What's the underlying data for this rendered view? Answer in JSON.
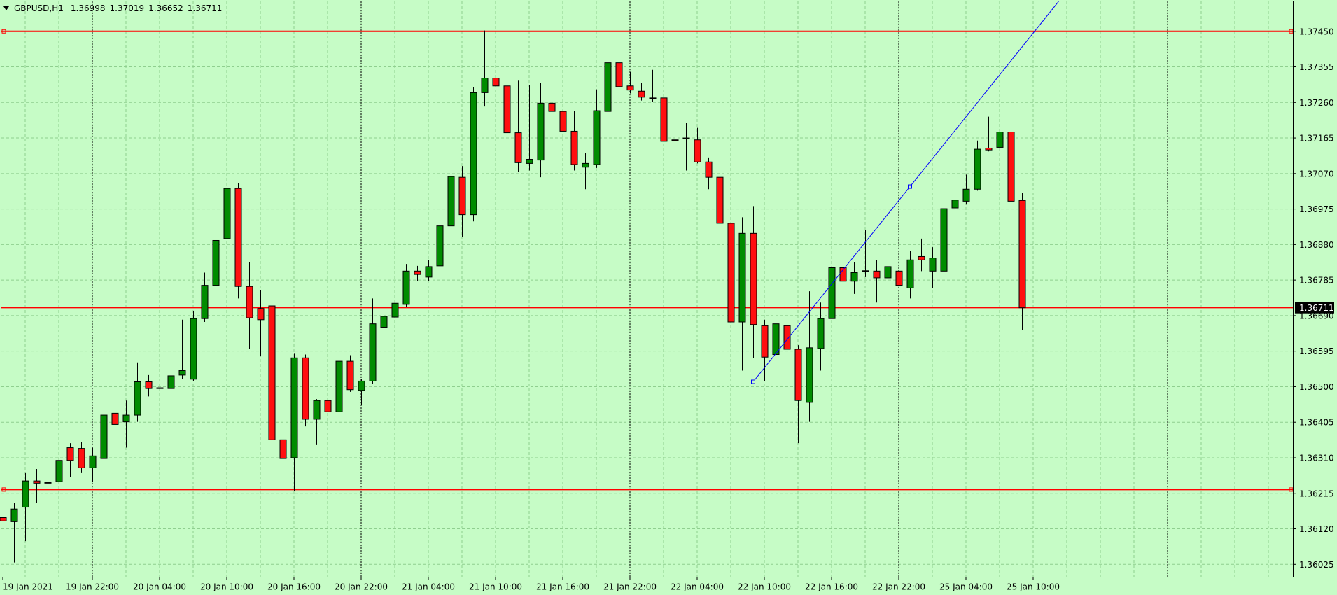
{
  "chart_data": {
    "type": "candlestick",
    "title": "GBPUSD,H1",
    "categories": [
      "19 Jan 2021",
      null,
      null,
      null,
      null,
      null,
      null,
      null,
      "19 Jan 22:00",
      null,
      null,
      null,
      null,
      null,
      "20 Jan 04:00",
      null,
      null,
      null,
      null,
      null,
      "20 Jan 10:00",
      null,
      null,
      null,
      null,
      null,
      "20 Jan 16:00",
      null,
      null,
      null,
      null,
      null,
      "20 Jan 22:00",
      null,
      null,
      null,
      null,
      null,
      "21 Jan 04:00",
      null,
      null,
      null,
      null,
      null,
      "21 Jan 10:00",
      null,
      null,
      null,
      null,
      null,
      "21 Jan 16:00",
      null,
      null,
      null,
      null,
      null,
      "21 Jan 22:00",
      null,
      null,
      null,
      null,
      null,
      "22 Jan 04:00",
      null,
      null,
      null,
      null,
      null,
      "22 Jan 10:00",
      null,
      null,
      null,
      null,
      null,
      "22 Jan 16:00",
      null,
      null,
      null,
      null,
      null,
      "22 Jan 22:00",
      null,
      null,
      null,
      null,
      null,
      "25 Jan 04:00",
      null,
      null,
      null,
      null,
      null,
      "25 Jan 10:00"
    ],
    "open": [
      1.3615,
      1.36139,
      1.36178,
      1.36248,
      1.36242,
      1.36246,
      1.36337,
      1.36335,
      1.36283,
      1.36308,
      1.36429,
      1.36406,
      1.36424,
      1.36513,
      1.36495,
      1.36495,
      1.36531,
      1.3652,
      1.36682,
      1.36771,
      1.36896,
      1.3703,
      1.36768,
      1.36709,
      1.36716,
      1.36358,
      1.3631,
      1.36577,
      1.36413,
      1.36463,
      1.36433,
      1.36568,
      1.3649,
      1.36515,
      1.36659,
      1.36686,
      1.3672,
      1.36809,
      1.36793,
      1.36823,
      1.3693,
      1.3706,
      1.3696,
      1.37286,
      1.37325,
      1.37304,
      1.37179,
      1.37097,
      1.37106,
      1.37258,
      1.37236,
      1.37183,
      1.37087,
      1.37094,
      1.37236,
      1.37366,
      1.37304,
      1.3729,
      1.37272,
      1.37272,
      1.3716,
      1.37163,
      1.3716,
      1.37101,
      1.3706,
      1.36937,
      1.36673,
      1.3691,
      1.36663,
      1.36586,
      1.36663,
      1.366,
      1.36458,
      1.36602,
      1.36682,
      1.36818,
      1.36782,
      1.36809,
      1.36809,
      1.36791,
      1.36809,
      1.36764,
      1.36848,
      1.36809,
      1.36809,
      1.36978,
      1.36996,
      1.37028,
      1.37138,
      1.3714,
      1.37181,
      1.36998,
      null
    ],
    "high": [
      1.36171,
      1.36189,
      1.36269,
      1.3628,
      1.36276,
      1.36349,
      1.36349,
      1.36353,
      1.36337,
      1.36451,
      1.36497,
      1.36463,
      1.36565,
      1.36531,
      1.36531,
      1.36565,
      1.36679,
      1.36702,
      1.36805,
      1.36953,
      1.37176,
      1.37044,
      1.36832,
      1.36759,
      1.36791,
      1.36394,
      1.36588,
      1.36586,
      1.36467,
      1.36474,
      1.36577,
      1.36584,
      1.3652,
      1.36736,
      1.36709,
      1.36777,
      1.36828,
      1.36823,
      1.36839,
      1.36937,
      1.3709,
      1.3709,
      1.373,
      1.37452,
      1.37363,
      1.37352,
      1.37318,
      1.37306,
      1.37311,
      1.37386,
      1.37347,
      1.37238,
      1.37124,
      1.37295,
      1.37375,
      1.3737,
      1.37341,
      1.37313,
      1.37347,
      1.37277,
      1.37215,
      1.37206,
      1.37192,
      1.37113,
      1.37065,
      1.36953,
      1.36953,
      1.36983,
      1.36679,
      1.36679,
      1.36755,
      1.36611,
      1.36755,
      1.36725,
      1.36832,
      1.36832,
      1.36832,
      1.36919,
      1.36839,
      1.36866,
      1.36839,
      1.36862,
      1.36896,
      1.36873,
      1.37005,
      1.37015,
      1.37067,
      1.37158,
      1.37222,
      1.37215,
      1.37197,
      1.37019,
      null
    ],
    "low": [
      1.36052,
      1.3603,
      1.36087,
      1.36189,
      1.36189,
      1.36201,
      1.36258,
      1.36269,
      1.36246,
      1.36292,
      1.36372,
      1.36337,
      1.36406,
      1.36474,
      1.36463,
      1.3649,
      1.3652,
      1.36515,
      1.36673,
      1.36748,
      1.36873,
      1.36736,
      1.366,
      1.36581,
      1.36349,
      1.3623,
      1.36221,
      1.36394,
      1.36344,
      1.36406,
      1.36417,
      1.36486,
      1.36451,
      1.36508,
      1.36577,
      1.36682,
      1.36714,
      1.36782,
      1.36782,
      1.36793,
      1.36919,
      1.36901,
      1.36942,
      1.37249,
      1.37174,
      1.37174,
      1.37074,
      1.37078,
      1.3706,
      1.37113,
      1.37113,
      1.37078,
      1.37028,
      1.37085,
      1.37197,
      1.37272,
      1.37284,
      1.37265,
      1.37261,
      1.37133,
      1.37078,
      1.37078,
      1.37097,
      1.37028,
      1.36907,
      1.36611,
      1.36543,
      1.36577,
      1.36515,
      1.36581,
      1.36588,
      1.36349,
      1.36406,
      1.36543,
      1.36604,
      1.36748,
      1.36748,
      1.36793,
      1.36725,
      1.36748,
      1.3672,
      1.36736,
      1.36809,
      1.36764,
      1.36805,
      1.36971,
      1.36987,
      1.37024,
      1.37129,
      1.37124,
      1.36919,
      1.36652,
      null
    ],
    "close": [
      1.36141,
      1.36173,
      1.36248,
      1.36242,
      1.36244,
      1.36303,
      1.36303,
      1.36283,
      1.36315,
      1.36424,
      1.36399,
      1.36424,
      1.36513,
      1.36495,
      1.36497,
      1.36529,
      1.36543,
      1.36682,
      1.36771,
      1.36891,
      1.3703,
      1.36768,
      1.36684,
      1.36679,
      1.36358,
      1.36308,
      1.36577,
      1.36413,
      1.36463,
      1.36433,
      1.36568,
      1.36492,
      1.36515,
      1.36668,
      1.36688,
      1.36723,
      1.36809,
      1.368,
      1.36821,
      1.3693,
      1.37062,
      1.3696,
      1.37286,
      1.37325,
      1.37304,
      1.37179,
      1.37099,
      1.37108,
      1.37258,
      1.37236,
      1.37183,
      1.37094,
      1.37097,
      1.37238,
      1.37366,
      1.37302,
      1.37293,
      1.37274,
      1.37271,
      1.37156,
      1.37158,
      1.37165,
      1.37101,
      1.3706,
      1.36937,
      1.36673,
      1.3691,
      1.36666,
      1.36579,
      1.36668,
      1.366,
      1.36463,
      1.36604,
      1.36682,
      1.36818,
      1.36782,
      1.36805,
      1.3681,
      1.36791,
      1.36821,
      1.36771,
      1.36839,
      1.36839,
      1.36844,
      1.36976,
      1.36999,
      1.37028,
      1.37135,
      1.37133,
      1.37181,
      1.36996,
      1.36711,
      null
    ],
    "bull_color": "#008c00",
    "bear_color": "#ff1010",
    "ylim": [
      1.3599,
      1.3753
    ],
    "yticks": [
      {
        "value": 1.3745,
        "label": "1.37450"
      },
      1.37355,
      {
        "value": 1.3726,
        "label": "1.37260"
      },
      1.37165,
      {
        "value": 1.3707,
        "label": "1.37070"
      },
      1.36975,
      {
        "value": 1.3688,
        "label": "1.36880"
      },
      1.36785,
      {
        "value": 1.3669,
        "label": "1.36690"
      },
      1.36595,
      {
        "value": 1.365,
        "label": "1.36500"
      },
      1.36405,
      {
        "value": 1.3631,
        "label": "1.36310"
      },
      1.36215,
      {
        "value": 1.3612,
        "label": "1.36120"
      },
      1.36025
    ],
    "grid": true,
    "hlines": {
      "values": [
        1.3745,
        1.36225
      ],
      "color": "#ff0000"
    },
    "trendline": {
      "x": [
        67,
        81
      ],
      "values": [
        1.36513,
        1.37035
      ],
      "color": "#0000ff",
      "ray": true
    }
  }
}
